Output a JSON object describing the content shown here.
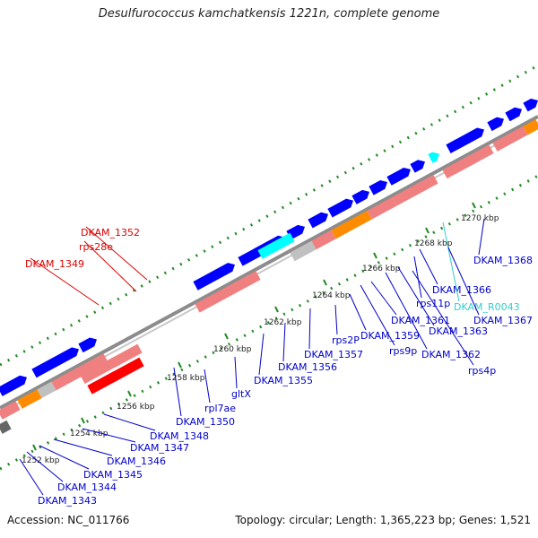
{
  "title": "Desulfurococcus kamchatkensis 1221n, complete genome",
  "footer": {
    "accession": "Accession: NC_011766",
    "stats": "Topology: circular; Length: 1,365,223 bp; Genes: 1,521"
  },
  "colors": {
    "cds_forward": "#0000ff",
    "cds_reverse": "#ff0000",
    "rna_or_light": "#f08080",
    "trna": "#00ffff",
    "orange": "#ff8c00",
    "grey": "#c0c0c0",
    "dark_grey": "#666666",
    "tick": "#228b22",
    "backbone": "#808080"
  },
  "ticks": [
    {
      "label": "1252 kbp",
      "kbp": 1252
    },
    {
      "label": "1254 kbp",
      "kbp": 1254
    },
    {
      "label": "1256 kbp",
      "kbp": 1256
    },
    {
      "label": "1258 kbp",
      "kbp": 1258
    },
    {
      "label": "1260 kbp",
      "kbp": 1260
    },
    {
      "label": "1262 kbp",
      "kbp": 1262
    },
    {
      "label": "1264 kbp",
      "kbp": 1264
    },
    {
      "label": "1266 kbp",
      "kbp": 1266
    },
    {
      "label": "1268 kbp",
      "kbp": 1268
    },
    {
      "label": "1270 kbp",
      "kbp": 1270
    }
  ],
  "gene_labels": [
    {
      "name": "DKAM_1343",
      "color": "#0000cc"
    },
    {
      "name": "DKAM_1344",
      "color": "#0000cc"
    },
    {
      "name": "DKAM_1345",
      "color": "#0000cc"
    },
    {
      "name": "DKAM_1346",
      "color": "#0000cc"
    },
    {
      "name": "DKAM_1347",
      "color": "#0000cc"
    },
    {
      "name": "DKAM_1348",
      "color": "#0000cc"
    },
    {
      "name": "DKAM_1349",
      "color": "#dd0000"
    },
    {
      "name": "rps28e",
      "color": "#dd0000"
    },
    {
      "name": "DKAM_1352",
      "color": "#dd0000"
    },
    {
      "name": "DKAM_1350",
      "color": "#0000cc"
    },
    {
      "name": "rpl7ae",
      "color": "#0000cc"
    },
    {
      "name": "gltX",
      "color": "#0000cc"
    },
    {
      "name": "DKAM_1355",
      "color": "#0000cc"
    },
    {
      "name": "DKAM_1356",
      "color": "#0000cc"
    },
    {
      "name": "DKAM_1357",
      "color": "#0000cc"
    },
    {
      "name": "rps2P",
      "color": "#0000cc"
    },
    {
      "name": "DKAM_1359",
      "color": "#0000cc"
    },
    {
      "name": "rps9p",
      "color": "#0000cc"
    },
    {
      "name": "DKAM_1361",
      "color": "#0000cc"
    },
    {
      "name": "DKAM_1362",
      "color": "#0000cc"
    },
    {
      "name": "DKAM_1363",
      "color": "#0000cc"
    },
    {
      "name": "rps4p",
      "color": "#0000cc"
    },
    {
      "name": "rps11p",
      "color": "#0000cc"
    },
    {
      "name": "DKAM_1366",
      "color": "#0000cc"
    },
    {
      "name": "DKAM_R0043",
      "color": "#33cccc"
    },
    {
      "name": "DKAM_1367",
      "color": "#0000cc"
    },
    {
      "name": "DKAM_1368",
      "color": "#0000cc"
    }
  ]
}
